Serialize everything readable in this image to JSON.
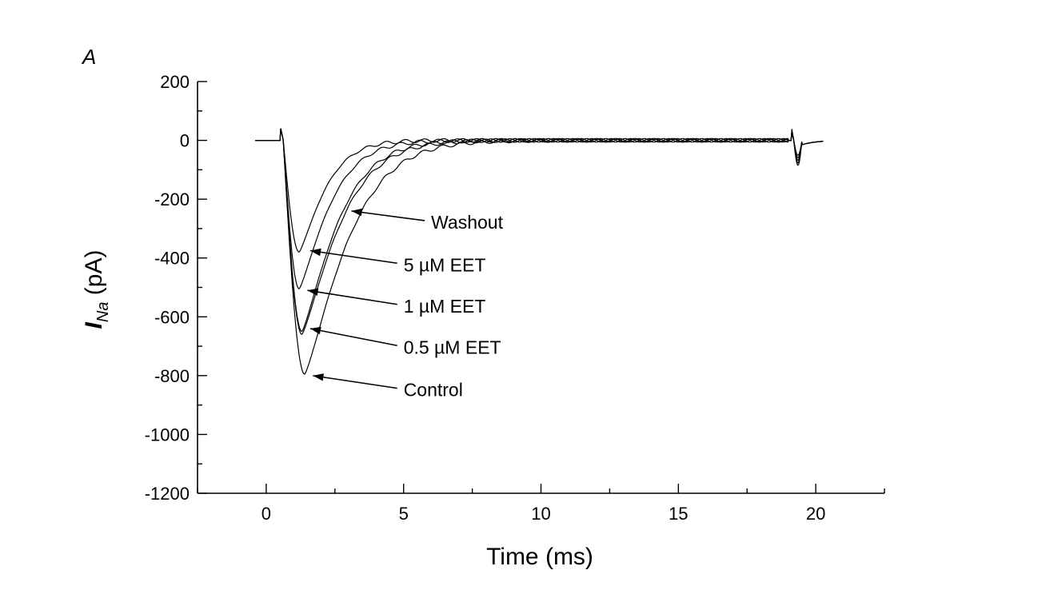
{
  "chart_data": {
    "type": "line",
    "panel_label": "A",
    "xlabel": "Time (ms)",
    "ylabel_main": "I",
    "ylabel_sub": "Na",
    "ylabel_unit": " (pA)",
    "xlim": [
      -2.5,
      22.5
    ],
    "ylim": [
      -1200,
      200
    ],
    "xticks": [
      0,
      5,
      10,
      15,
      20
    ],
    "xtick_labels": [
      "0",
      "5",
      "10",
      "15",
      "20"
    ],
    "yticks": [
      200,
      0,
      -200,
      -400,
      -600,
      -800,
      -1000,
      -1200
    ],
    "ytick_labels": [
      "200",
      "0",
      "-200",
      "-400",
      "-600",
      "-800",
      "-1000",
      "-1200"
    ],
    "grid": false,
    "series": [
      {
        "name": "Washout",
        "peak_time": 1.2,
        "peak_value": -380,
        "tau": 1.1
      },
      {
        "name": "5 µM EET",
        "peak_time": 1.2,
        "peak_value": -505,
        "tau": 1.3
      },
      {
        "name": "1 µM EET",
        "peak_time": 1.3,
        "peak_value": -650,
        "tau": 1.5
      },
      {
        "name": "0.5 µM EET",
        "peak_time": 1.3,
        "peak_value": -660,
        "tau": 1.6
      },
      {
        "name": "Control",
        "peak_time": 1.4,
        "peak_value": -795,
        "tau": 1.8
      }
    ],
    "annotations": [
      {
        "text": "Washout",
        "point": [
          3.1,
          -240
        ],
        "label_at": [
          6.0,
          -300
        ]
      },
      {
        "text": "5 µM EET",
        "point": [
          1.6,
          -375
        ],
        "label_at": [
          5.0,
          -445
        ]
      },
      {
        "text": "1 µM EET",
        "point": [
          1.5,
          -510
        ],
        "label_at": [
          5.0,
          -585
        ]
      },
      {
        "text": "0.5 µM EET",
        "point": [
          1.6,
          -640
        ],
        "label_at": [
          5.0,
          -725
        ]
      },
      {
        "text": "Control",
        "point": [
          1.7,
          -800
        ],
        "label_at": [
          5.0,
          -870
        ]
      }
    ]
  }
}
